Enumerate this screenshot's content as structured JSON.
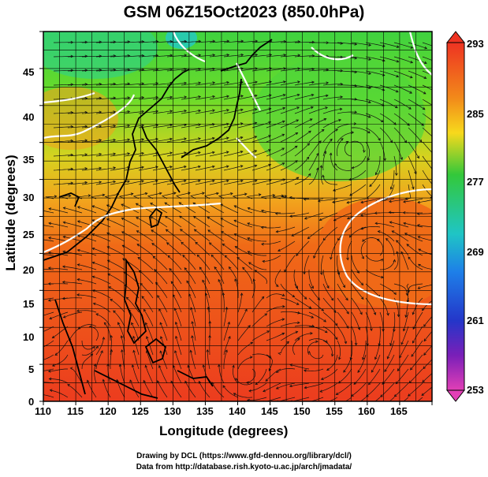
{
  "title": "GSM 06Z15Oct2023 (850.0hPa)",
  "axes": {
    "xlabel": "Longitude (degrees)",
    "ylabel": "Latitude  (degrees)",
    "x_ticks": [
      "110",
      "115",
      "120",
      "125",
      "130",
      "135",
      "140",
      "145",
      "150",
      "155",
      "160",
      "165"
    ],
    "y_ticks": [
      "0",
      "5",
      "10",
      "15",
      "20",
      "25",
      "30",
      "35",
      "40",
      "45"
    ]
  },
  "colorbar": {
    "labels": [
      "293",
      "285",
      "277",
      "269",
      "261",
      "253"
    ]
  },
  "credits": {
    "line1": "Drawing by DCL (https://www.gfd-dennou.org/library/dcl/)",
    "line2": "Data from http://database.rish.kyoto-u.ac.jp/arch/jmadata/"
  },
  "chart_data": {
    "type": "heatmap",
    "title": "GSM 06Z15Oct2023 (850.0hPa)",
    "xlabel": "Longitude (degrees)",
    "ylabel": "Latitude  (degrees)",
    "xlim": [
      110,
      170
    ],
    "ylim": [
      0,
      50
    ],
    "colorbar_range": [
      253,
      293
    ],
    "colorbar_ticks": [
      253,
      261,
      269,
      277,
      285,
      293
    ],
    "grid": true,
    "overlays": [
      "coastlines",
      "streamlines",
      "contours"
    ]
  }
}
